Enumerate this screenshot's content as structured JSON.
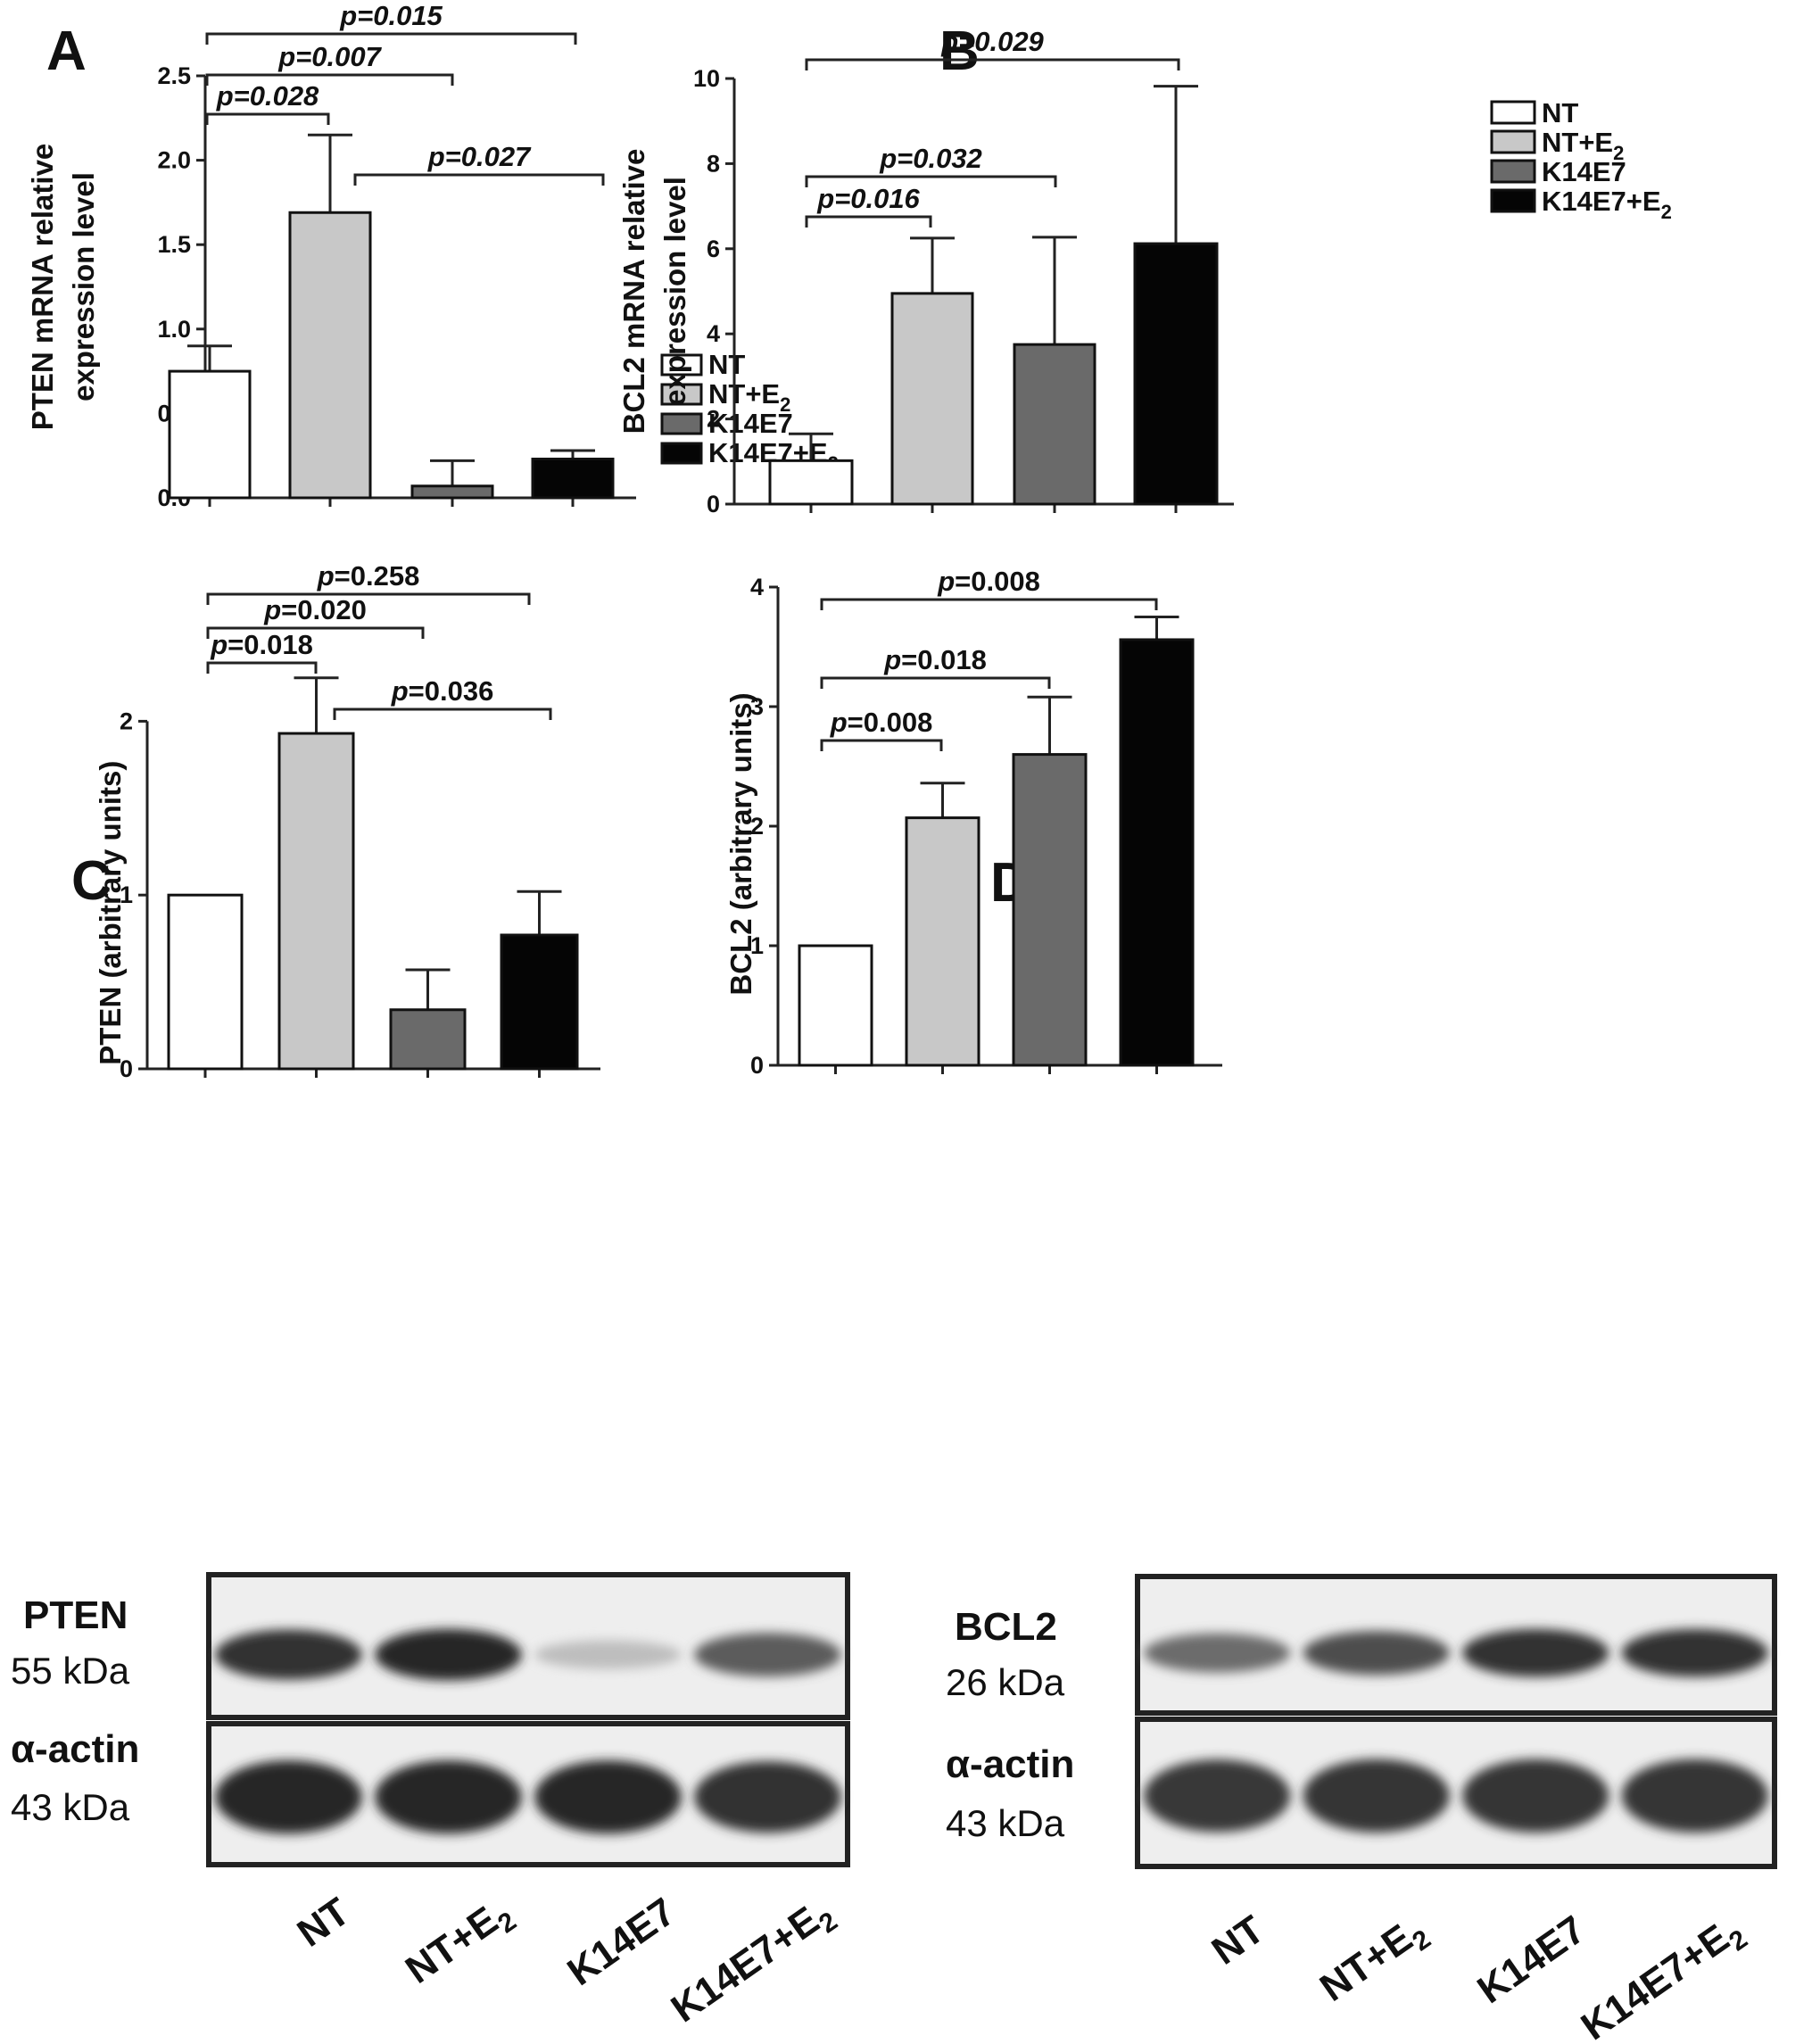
{
  "colors": {
    "NT": "#ffffff",
    "NT+E2": "#c8c8c8",
    "K14E7": "#6a6a6a",
    "K14E7+E2": "#050505"
  },
  "legend": [
    {
      "key": "NT",
      "label": "NT",
      "sub": ""
    },
    {
      "key": "NT+E2",
      "label": "NT+E",
      "sub": "2"
    },
    {
      "key": "K14E7",
      "label": "K14E7",
      "sub": ""
    },
    {
      "key": "K14E7+E2",
      "label": "K14E7+E",
      "sub": "2"
    }
  ],
  "chart_data": [
    {
      "panel": "A",
      "type": "bar",
      "categories": [
        "NT",
        "NT+E2",
        "K14E7",
        "K14E7+E2"
      ],
      "values": [
        0.75,
        1.69,
        0.07,
        0.23
      ],
      "error": [
        0.15,
        0.46,
        0.15,
        0.05
      ],
      "ylabel": [
        "PTEN mRNA relative",
        "expression level"
      ],
      "ylim": [
        0,
        2.5
      ],
      "yticks": [
        "0.0",
        "0.5",
        "1.0",
        "1.5",
        "2.0",
        "2.5"
      ],
      "tick_values": [
        0,
        0.5,
        1.0,
        1.5,
        2.0,
        2.5
      ],
      "legend": "right",
      "comparisons": [
        {
          "from": 0,
          "to": 1,
          "text": "p=0.028"
        },
        {
          "from": 0,
          "to": 2,
          "text": "p=0.007"
        },
        {
          "from": 0,
          "to": 3,
          "text": "p=0.015"
        },
        {
          "from": 1,
          "to": 3,
          "text": "p=0.027"
        }
      ]
    },
    {
      "panel": "B",
      "type": "bar",
      "categories": [
        "NT",
        "NT+E2",
        "K14E7",
        "K14E7+E2"
      ],
      "values": [
        1.02,
        4.95,
        3.75,
        6.12
      ],
      "error": [
        0.63,
        1.3,
        2.52,
        3.7
      ],
      "ylabel": [
        "BCL2 mRNA relative",
        "expression level"
      ],
      "ylim": [
        0,
        10
      ],
      "yticks": [
        "0",
        "2",
        "4",
        "6",
        "8",
        "10"
      ],
      "tick_values": [
        0,
        2,
        4,
        6,
        8,
        10
      ],
      "legend": "top-right",
      "comparisons": [
        {
          "from": 0,
          "to": 1,
          "text": "p=0.016"
        },
        {
          "from": 0,
          "to": 2,
          "text": "p=0.032"
        },
        {
          "from": 0,
          "to": 3,
          "text": "p=0.029"
        }
      ]
    },
    {
      "panel": "C",
      "type": "bar",
      "categories": [
        "NT",
        "NT+E2",
        "K14E7",
        "K14E7+E2"
      ],
      "values": [
        1.0,
        1.93,
        0.34,
        0.77
      ],
      "error": [
        0,
        0.32,
        0.23,
        0.25
      ],
      "ylabel": [
        "PTEN (arbitrary units)"
      ],
      "ylim": [
        0,
        2.5
      ],
      "yticks": [
        "0",
        "1",
        "2"
      ],
      "tick_values": [
        0,
        1,
        2
      ],
      "comparisons": [
        {
          "from": 0,
          "to": 1,
          "text": "=0.018"
        },
        {
          "from": 0,
          "to": 2,
          "text": "=0.020"
        },
        {
          "from": 0,
          "to": 3,
          "text": "=0.258"
        },
        {
          "from": 1,
          "to": 3,
          "text": "=0.036"
        }
      ]
    },
    {
      "panel": "D",
      "type": "bar",
      "categories": [
        "NT",
        "NT+E2",
        "K14E7",
        "K14E7+E2"
      ],
      "values": [
        1.0,
        2.07,
        2.6,
        3.56
      ],
      "error": [
        0,
        0.29,
        0.48,
        0.19
      ],
      "ylabel": [
        "BCL2 (arbitrary units)"
      ],
      "ylim": [
        0,
        4
      ],
      "yticks": [
        "0",
        "1",
        "2",
        "3",
        "4"
      ],
      "tick_values": [
        0,
        1,
        2,
        3,
        4
      ],
      "comparisons": [
        {
          "from": 0,
          "to": 1,
          "text": "=0.008"
        },
        {
          "from": 0,
          "to": 2,
          "text": "=0.018"
        },
        {
          "from": 0,
          "to": 3,
          "text": "=0.008"
        }
      ]
    }
  ],
  "blots": {
    "C": {
      "target": {
        "name": "PTEN",
        "size": "55 kDa"
      },
      "loading": {
        "name": "α-actin",
        "size": "43 kDa"
      },
      "target_intensity": [
        0.95,
        1.0,
        0.12,
        0.7
      ],
      "loading_intensity": [
        1.0,
        1.0,
        1.0,
        0.95
      ]
    },
    "D": {
      "target": {
        "name": "BCL2",
        "size": "26 kDa"
      },
      "loading": {
        "name": "α-actin",
        "size": "43 kDa"
      },
      "target_intensity": [
        0.6,
        0.78,
        0.95,
        0.95
      ],
      "loading_intensity": [
        0.9,
        0.92,
        0.92,
        0.92
      ]
    }
  },
  "lanes": [
    {
      "label": "NT",
      "sub": ""
    },
    {
      "label": "NT+E",
      "sub": "2"
    },
    {
      "label": "K14E7",
      "sub": ""
    },
    {
      "label": "K14E7+E",
      "sub": "2"
    }
  ]
}
